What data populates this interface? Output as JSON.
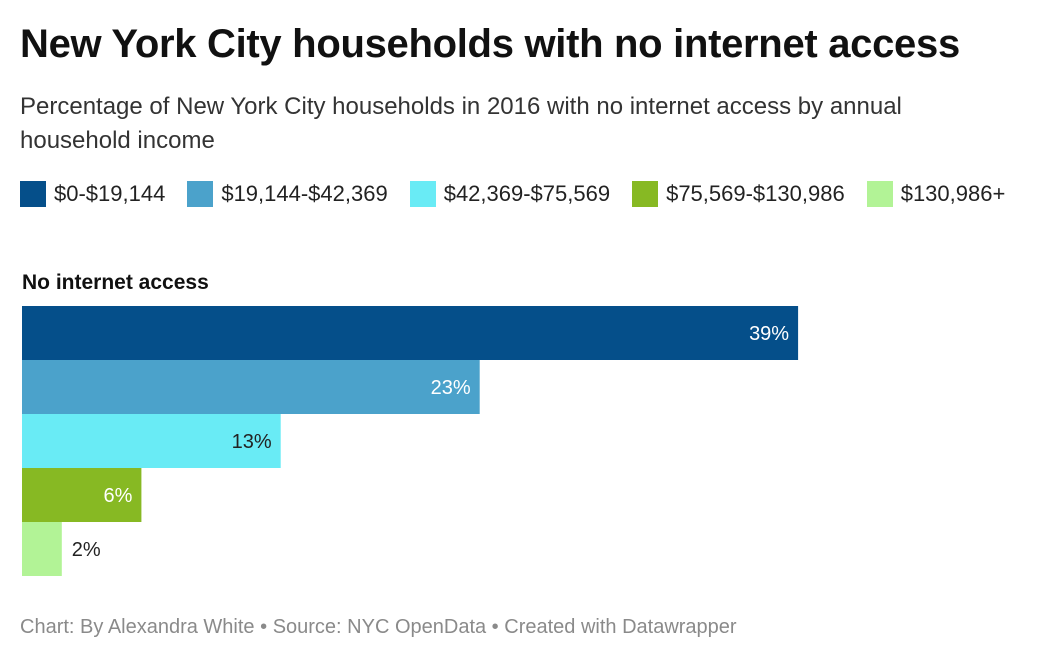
{
  "title": "New York City households with no internet access",
  "subtitle": "Percentage of New York City households in 2016 with no internet access by annual household income",
  "footer": {
    "chart_by": "Chart: By Alexandra White",
    "source": "Source: NYC OpenData",
    "created_with": "Created with Datawrapper",
    "separator": " • "
  },
  "chart_data": {
    "type": "bar",
    "orientation": "horizontal",
    "group_label": "No internet access",
    "unit": "%",
    "xlim": [
      0,
      50
    ],
    "grid": false,
    "legend_placement": "top-left",
    "series": [
      {
        "name": "$0-$19,144",
        "value": 39,
        "label": "39%",
        "color": "#054f8a",
        "label_color": "#ffffff"
      },
      {
        "name": "$19,144-$42,369",
        "value": 23,
        "label": "23%",
        "color": "#4ba2cb",
        "label_color": "#ffffff"
      },
      {
        "name": "$42,369-$75,569",
        "value": 13,
        "label": "13%",
        "color": "#69ebf5",
        "label_color": "#222222"
      },
      {
        "name": "$75,569-$130,986",
        "value": 6,
        "label": "6%",
        "color": "#87b923",
        "label_color": "#ffffff"
      },
      {
        "name": "$130,986+",
        "value": 2,
        "label": "2%",
        "color": "#b2f396",
        "label_color": "#222222"
      }
    ]
  }
}
